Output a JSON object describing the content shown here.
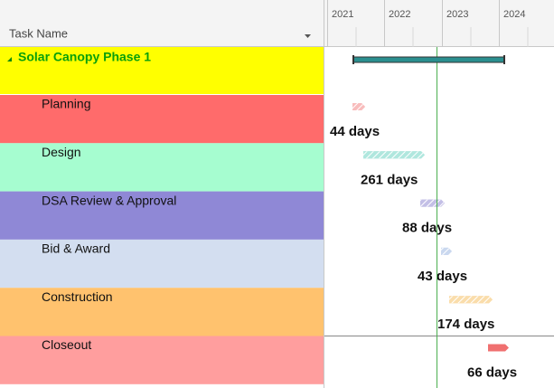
{
  "header": {
    "column": "Task Name"
  },
  "timeline": {
    "years": [
      "2021",
      "2022",
      "2023",
      "2024"
    ]
  },
  "summary": {
    "name": "Solar Canopy Phase 1"
  },
  "tasks": [
    {
      "name": "Planning",
      "duration": "44 days"
    },
    {
      "name": "Design",
      "duration": "261 days"
    },
    {
      "name": "DSA Review & Approval",
      "duration": "88 days"
    },
    {
      "name": "Bid & Award",
      "duration": "43 days"
    },
    {
      "name": "Construction",
      "duration": "174 days"
    },
    {
      "name": "Closeout",
      "duration": "66 days"
    }
  ]
}
